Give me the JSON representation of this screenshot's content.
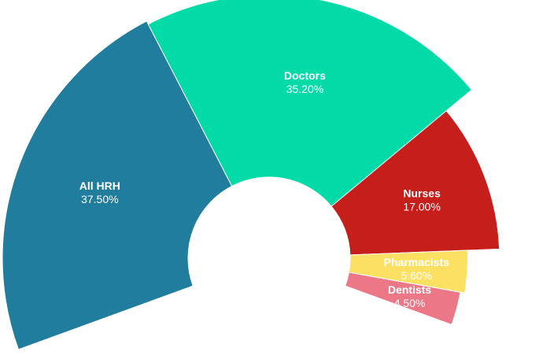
{
  "chart_data": {
    "type": "pie",
    "variant": "semi-donut",
    "start_angle_deg": -110,
    "end_angle_deg": 110,
    "title": "",
    "legend": "none",
    "slices": [
      {
        "label": "All HRH",
        "value": 37.5,
        "value_label": "37.50%",
        "color": "#217d9d"
      },
      {
        "label": "Doctors",
        "value": 35.2,
        "value_label": "35.20%",
        "color": "#02dba8"
      },
      {
        "label": "Nurses",
        "value": 17.0,
        "value_label": "17.00%",
        "color": "#c51e1b"
      },
      {
        "label": "Pharmacists",
        "value": 5.6,
        "value_label": "5.60%",
        "color": "#fbe062"
      },
      {
        "label": "Dentists",
        "value": 4.5,
        "value_label": "4.50%",
        "color": "#ec7887"
      }
    ]
  }
}
